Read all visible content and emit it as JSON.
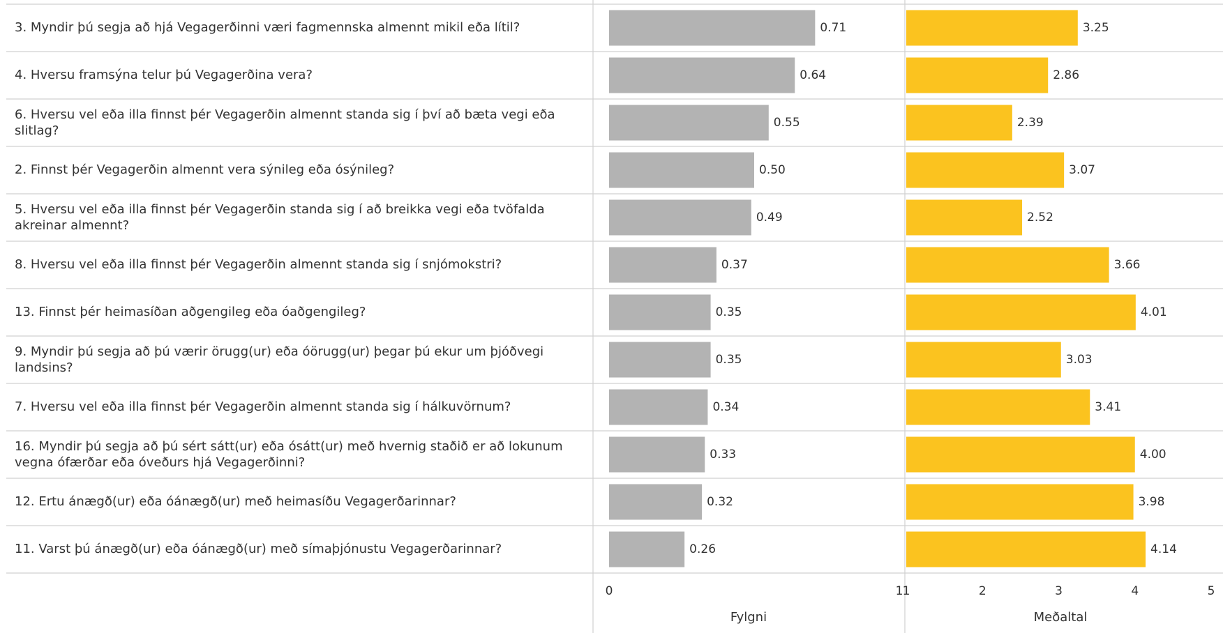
{
  "chart_data": [
    {
      "type": "bar",
      "orientation": "horizontal",
      "categories": [
        "3. Myndir þú segja að hjá Vegagerðinni væri fagmennska almennt mikil eða lítil?",
        "4. Hversu framsýna telur þú Vegagerðina vera?",
        "6. Hversu vel eða illa finnst þér Vegagerðin almennt standa sig í því að bæta vegi eða slitlag?",
        "2. Finnst þér Vegagerðin almennt vera sýnileg eða ósýnileg?",
        "5. Hversu vel eða illa finnst þér Vegagerðin standa sig í að breikka vegi eða tvöfalda akreinar almennt?",
        "8. Hversu vel eða illa finnst þér Vegagerðin almennt standa sig í snjómokstri?",
        "13. Finnst þér heimasíðan aðgengileg eða óaðgengileg?",
        "9. Myndir þú segja að þú værir örugg(ur) eða óörugg(ur) þegar þú ekur um þjóðvegi landsins?",
        "7. Hversu vel eða illa finnst þér Vegagerðin almennt standa sig í hálkuvörnum?",
        "16. Myndir þú segja að þú sért sátt(ur) eða ósátt(ur) með hvernig staðið er að lokunum vegna ófærðar eða óveðurs hjá Vegagerðinni?",
        "12. Ertu ánægð(ur) eða óánægð(ur) með heimasíðu Vegagerðarinnar?",
        "11. Varst þú ánægð(ur) eða óánægð(ur) með símaþjónustu Vegagerðarinnar?"
      ],
      "values": [
        0.71,
        0.64,
        0.55,
        0.5,
        0.49,
        0.37,
        0.35,
        0.35,
        0.34,
        0.33,
        0.32,
        0.26
      ],
      "value_labels": [
        "0.71",
        "0.64",
        "0.55",
        "0.50",
        "0.49",
        "0.37",
        "0.35",
        "0.35",
        "0.34",
        "0.33",
        "0.32",
        "0.26"
      ],
      "color": "#b3b3b3",
      "xlim": [
        0,
        1
      ],
      "xticks": [
        0,
        1
      ],
      "xlabel": "Fylgni"
    },
    {
      "type": "bar",
      "orientation": "horizontal",
      "values": [
        3.25,
        2.86,
        2.39,
        3.07,
        2.52,
        3.66,
        4.01,
        3.03,
        3.41,
        4.0,
        3.98,
        4.14
      ],
      "value_labels": [
        "3.25",
        "2.86",
        "2.39",
        "3.07",
        "2.52",
        "3.66",
        "4.01",
        "3.03",
        "3.41",
        "4.00",
        "3.98",
        "4.14"
      ],
      "color": "#fbc31f",
      "xlim": [
        1,
        5
      ],
      "xticks": [
        1,
        2,
        3,
        4,
        5
      ],
      "xlabel": "Meðaltal"
    }
  ]
}
